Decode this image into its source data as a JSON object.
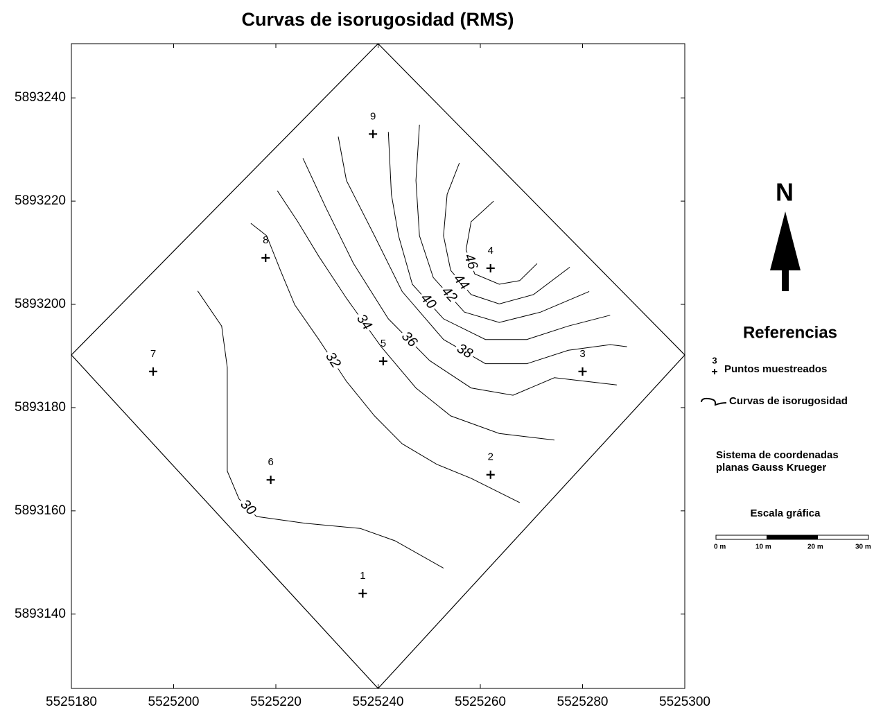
{
  "chart_data": {
    "type": "contour",
    "title": "Curvas de isorugosidad (RMS)",
    "xlim": [
      5525180,
      5525300
    ],
    "ylim": [
      5893125.6,
      5893250.5
    ],
    "xticks": [
      5525180,
      5525200,
      5525220,
      5525240,
      5525260,
      5525280,
      5525300
    ],
    "yticks": [
      5893140,
      5893160,
      5893180,
      5893200,
      5893220,
      5893240
    ],
    "boundary": {
      "x": [
        5525240,
        5525300,
        5525240,
        5525180
      ],
      "y": [
        5893250.5,
        5893190.2,
        5893125.6,
        5893190.2
      ]
    },
    "points": {
      "labels": [
        "1",
        "2",
        "3",
        "4",
        "5",
        "6",
        "7",
        "8",
        "9"
      ],
      "x": [
        5525237,
        5525262,
        5525280,
        5525262,
        5525241,
        5525219,
        5525196,
        5525218,
        5525239
      ],
      "y": [
        5893144,
        5893167,
        5893187,
        5893207,
        5893189,
        5893166,
        5893187,
        5893209,
        5893233
      ]
    },
    "contours": [
      {
        "level": 30,
        "x": [
          5525204.7,
          5525209.4,
          5525210.5,
          5525210.5,
          5525212.8,
          5525216.2,
          5525225.7,
          5525236.5,
          5525243.3,
          5525252.8
        ],
        "y": [
          5893202.6,
          5893195.8,
          5893187.8,
          5893167.7,
          5893162.3,
          5893158.9,
          5893157.6,
          5893156.6,
          5893154.2,
          5893148.9
        ]
      },
      {
        "level": 32,
        "x": [
          5525215.1,
          5525218.2,
          5525220.9,
          5525223.7,
          5525228.4,
          5525233.8,
          5525239.3,
          5525244.7,
          5525251.5,
          5525258.2,
          5525267.7
        ],
        "y": [
          5893215.7,
          5893213.3,
          5893206.6,
          5893199.9,
          5893193.2,
          5893185.1,
          5893178.4,
          5893173.0,
          5893169.0,
          5893166.3,
          5893161.6
        ]
      },
      {
        "level": 34,
        "x": [
          5525220.3,
          5525224.3,
          5525228.4,
          5525233.8,
          5525240.6,
          5525247.4,
          5525254.2,
          5525263.7,
          5525274.5
        ],
        "y": [
          5893222.0,
          5893216.0,
          5893209.3,
          5893201.2,
          5893191.8,
          5893183.8,
          5893178.4,
          5893175.0,
          5893173.7
        ]
      },
      {
        "level": 36,
        "x": [
          5525225.3,
          5525229.8,
          5525235.2,
          5525242.0,
          5525250.1,
          5525258.2,
          5525266.4,
          5525274.5,
          5525286.7
        ],
        "y": [
          5893228.3,
          5893218.7,
          5893207.9,
          5893197.2,
          5893189.1,
          5893183.8,
          5893182.4,
          5893185.8,
          5893184.4
        ]
      },
      {
        "level": 38,
        "x": [
          5525232.2,
          5525233.8,
          5525239.3,
          5525244.7,
          5525252.8,
          5525261.0,
          5525269.1,
          5525277.2,
          5525285.4,
          5525288.7
        ],
        "y": [
          5893232.5,
          5893224.0,
          5893213.3,
          5893202.5,
          5893193.2,
          5893188.5,
          5893188.5,
          5893191.1,
          5893192.2,
          5893191.8
        ]
      },
      {
        "level": 40,
        "x": [
          5525242.0,
          5525242.6,
          5525244.0,
          5525246.7,
          5525252.8,
          5525261.0,
          5525269.1,
          5525277.2,
          5525285.4
        ],
        "y": [
          5893233.4,
          5893221.3,
          5893213.3,
          5893203.9,
          5893197.2,
          5893193.2,
          5893193.2,
          5893195.8,
          5893197.9
        ]
      },
      {
        "level": 42,
        "x": [
          5525248.1,
          5525247.4,
          5525248.1,
          5525250.8,
          5525256.9,
          5525263.7,
          5525271.8,
          5525281.3
        ],
        "y": [
          5893234.8,
          5893224.0,
          5893213.3,
          5893205.2,
          5893198.5,
          5893196.5,
          5893198.5,
          5893202.5
        ]
      },
      {
        "level": 44,
        "x": [
          5525255.9,
          5525253.5,
          5525252.8,
          5525254.2,
          5525258.2,
          5525263.7,
          5525270.4,
          5525277.5
        ],
        "y": [
          5893227.4,
          5893221.3,
          5893213.3,
          5893206.6,
          5893201.9,
          5893200.1,
          5893201.9,
          5893207.2
        ]
      },
      {
        "level": 46,
        "x": [
          5525262.6,
          5525258.2,
          5525257.2,
          5525258.9,
          5525263.7,
          5525267.7,
          5525271.1
        ],
        "y": [
          5893220.0,
          5893216.0,
          5893210.6,
          5893205.9,
          5893203.9,
          5893204.6,
          5893207.9
        ]
      }
    ],
    "legend": {
      "north": "N",
      "title": "Referencias",
      "point_example": "3",
      "points_label": "Puntos muestreados",
      "curves_label": "Curvas de isorugosidad",
      "system_line1": "Sistema de coordenadas",
      "system_line2": "planas Gauss Krueger",
      "scale_title": "Escala gráfica",
      "scale_labels": [
        "0 m",
        "10 m",
        "20 m",
        "30 m"
      ]
    }
  }
}
